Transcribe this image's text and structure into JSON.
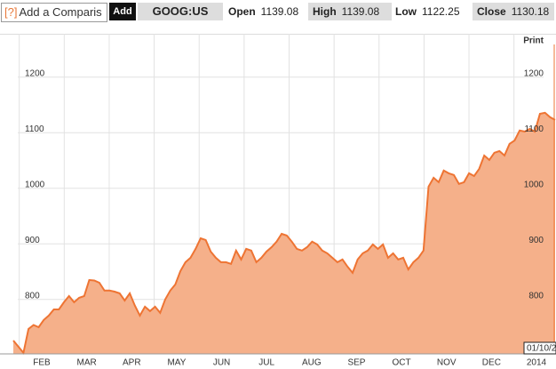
{
  "header": {
    "help": "[?]",
    "search_placeholder": "Add a Comparis",
    "add_button": "Add",
    "symbol": "GOOG:US",
    "quotes": [
      {
        "label": "Open",
        "value": 1139.08
      },
      {
        "label": "High",
        "value": 1139.08
      },
      {
        "label": "Low",
        "value": 1122.25
      },
      {
        "label": "Close",
        "value": 1130.18
      }
    ]
  },
  "chart_data": {
    "type": "area",
    "print_label": "Print",
    "cursor_date": "01/10/2",
    "x_labels": [
      "FEB",
      "MAR",
      "APR",
      "MAY",
      "JUN",
      "JUL",
      "AUG",
      "SEP",
      "OCT",
      "NOV",
      "DEC",
      "2014"
    ],
    "values": [
      726,
      715,
      704,
      747,
      754,
      750,
      763,
      771,
      782,
      782,
      795,
      806,
      795,
      803,
      806,
      835,
      834,
      830,
      816,
      816,
      814,
      811,
      798,
      811,
      789,
      771,
      787,
      779,
      787,
      776,
      800,
      816,
      827,
      851,
      867,
      875,
      891,
      910,
      907,
      886,
      875,
      867,
      867,
      864,
      888,
      872,
      891,
      888,
      867,
      875,
      886,
      894,
      904,
      918,
      915,
      904,
      891,
      888,
      894,
      904,
      899,
      888,
      883,
      875,
      867,
      872,
      859,
      848,
      872,
      883,
      888,
      899,
      891,
      899,
      875,
      883,
      872,
      875,
      854,
      867,
      875,
      888,
      1003,
      1019,
      1011,
      1032,
      1027,
      1024,
      1008,
      1011,
      1027,
      1022,
      1035,
      1059,
      1051,
      1064,
      1067,
      1059,
      1080,
      1086,
      1104,
      1102,
      1107,
      1102,
      1134,
      1136,
      1128,
      1123
    ],
    "ylim": [
      702,
      1278
    ],
    "yticks": [
      800,
      900,
      1000,
      1100,
      1200
    ],
    "color": "#ee7433",
    "fill": "#f5b08a",
    "grid": true
  }
}
